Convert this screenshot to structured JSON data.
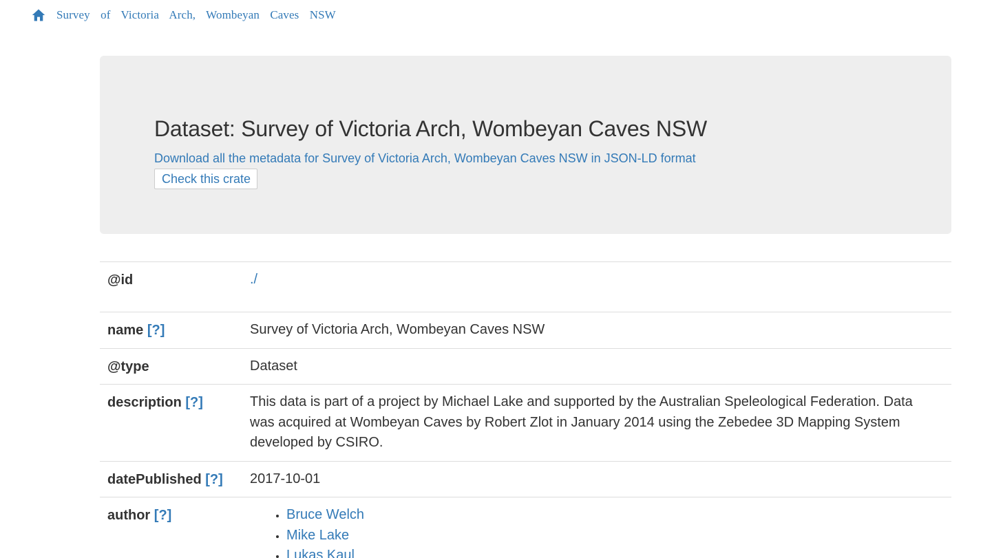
{
  "breadcrumb": {
    "home_icon": "home-icon",
    "link_text": "Survey of Victoria Arch, Wombeyan Caves NSW"
  },
  "header": {
    "title": "Dataset: Survey of Victoria Arch, Wombeyan Caves NSW",
    "download_link": "Download all the metadata for Survey of Victoria Arch, Wombeyan Caves NSW in JSON-LD format",
    "check_button": "Check this crate"
  },
  "properties": {
    "help_marker": "[?]",
    "id": {
      "label": "@id",
      "value": "./"
    },
    "name": {
      "label": "name",
      "value": "Survey of Victoria Arch, Wombeyan Caves NSW"
    },
    "type": {
      "label": "@type",
      "value": "Dataset"
    },
    "description": {
      "label": "description",
      "value": "This data is part of a project by Michael Lake and supported by the Australian Speleological Federation. Data was acquired at Wombeyan Caves by Robert Zlot in January 2014 using the Zebedee 3D Mapping System developed by CSIRO."
    },
    "date_published": {
      "label": "datePublished",
      "value": "2017-10-01"
    },
    "author": {
      "label": "author",
      "items": [
        "Bruce Welch",
        "Mike Lake",
        "Lukas Kaul"
      ]
    }
  },
  "colors": {
    "link": "#337ab7",
    "text": "#333333",
    "jumbotron_bg": "#eeeeee",
    "divider": "#dddddd"
  }
}
